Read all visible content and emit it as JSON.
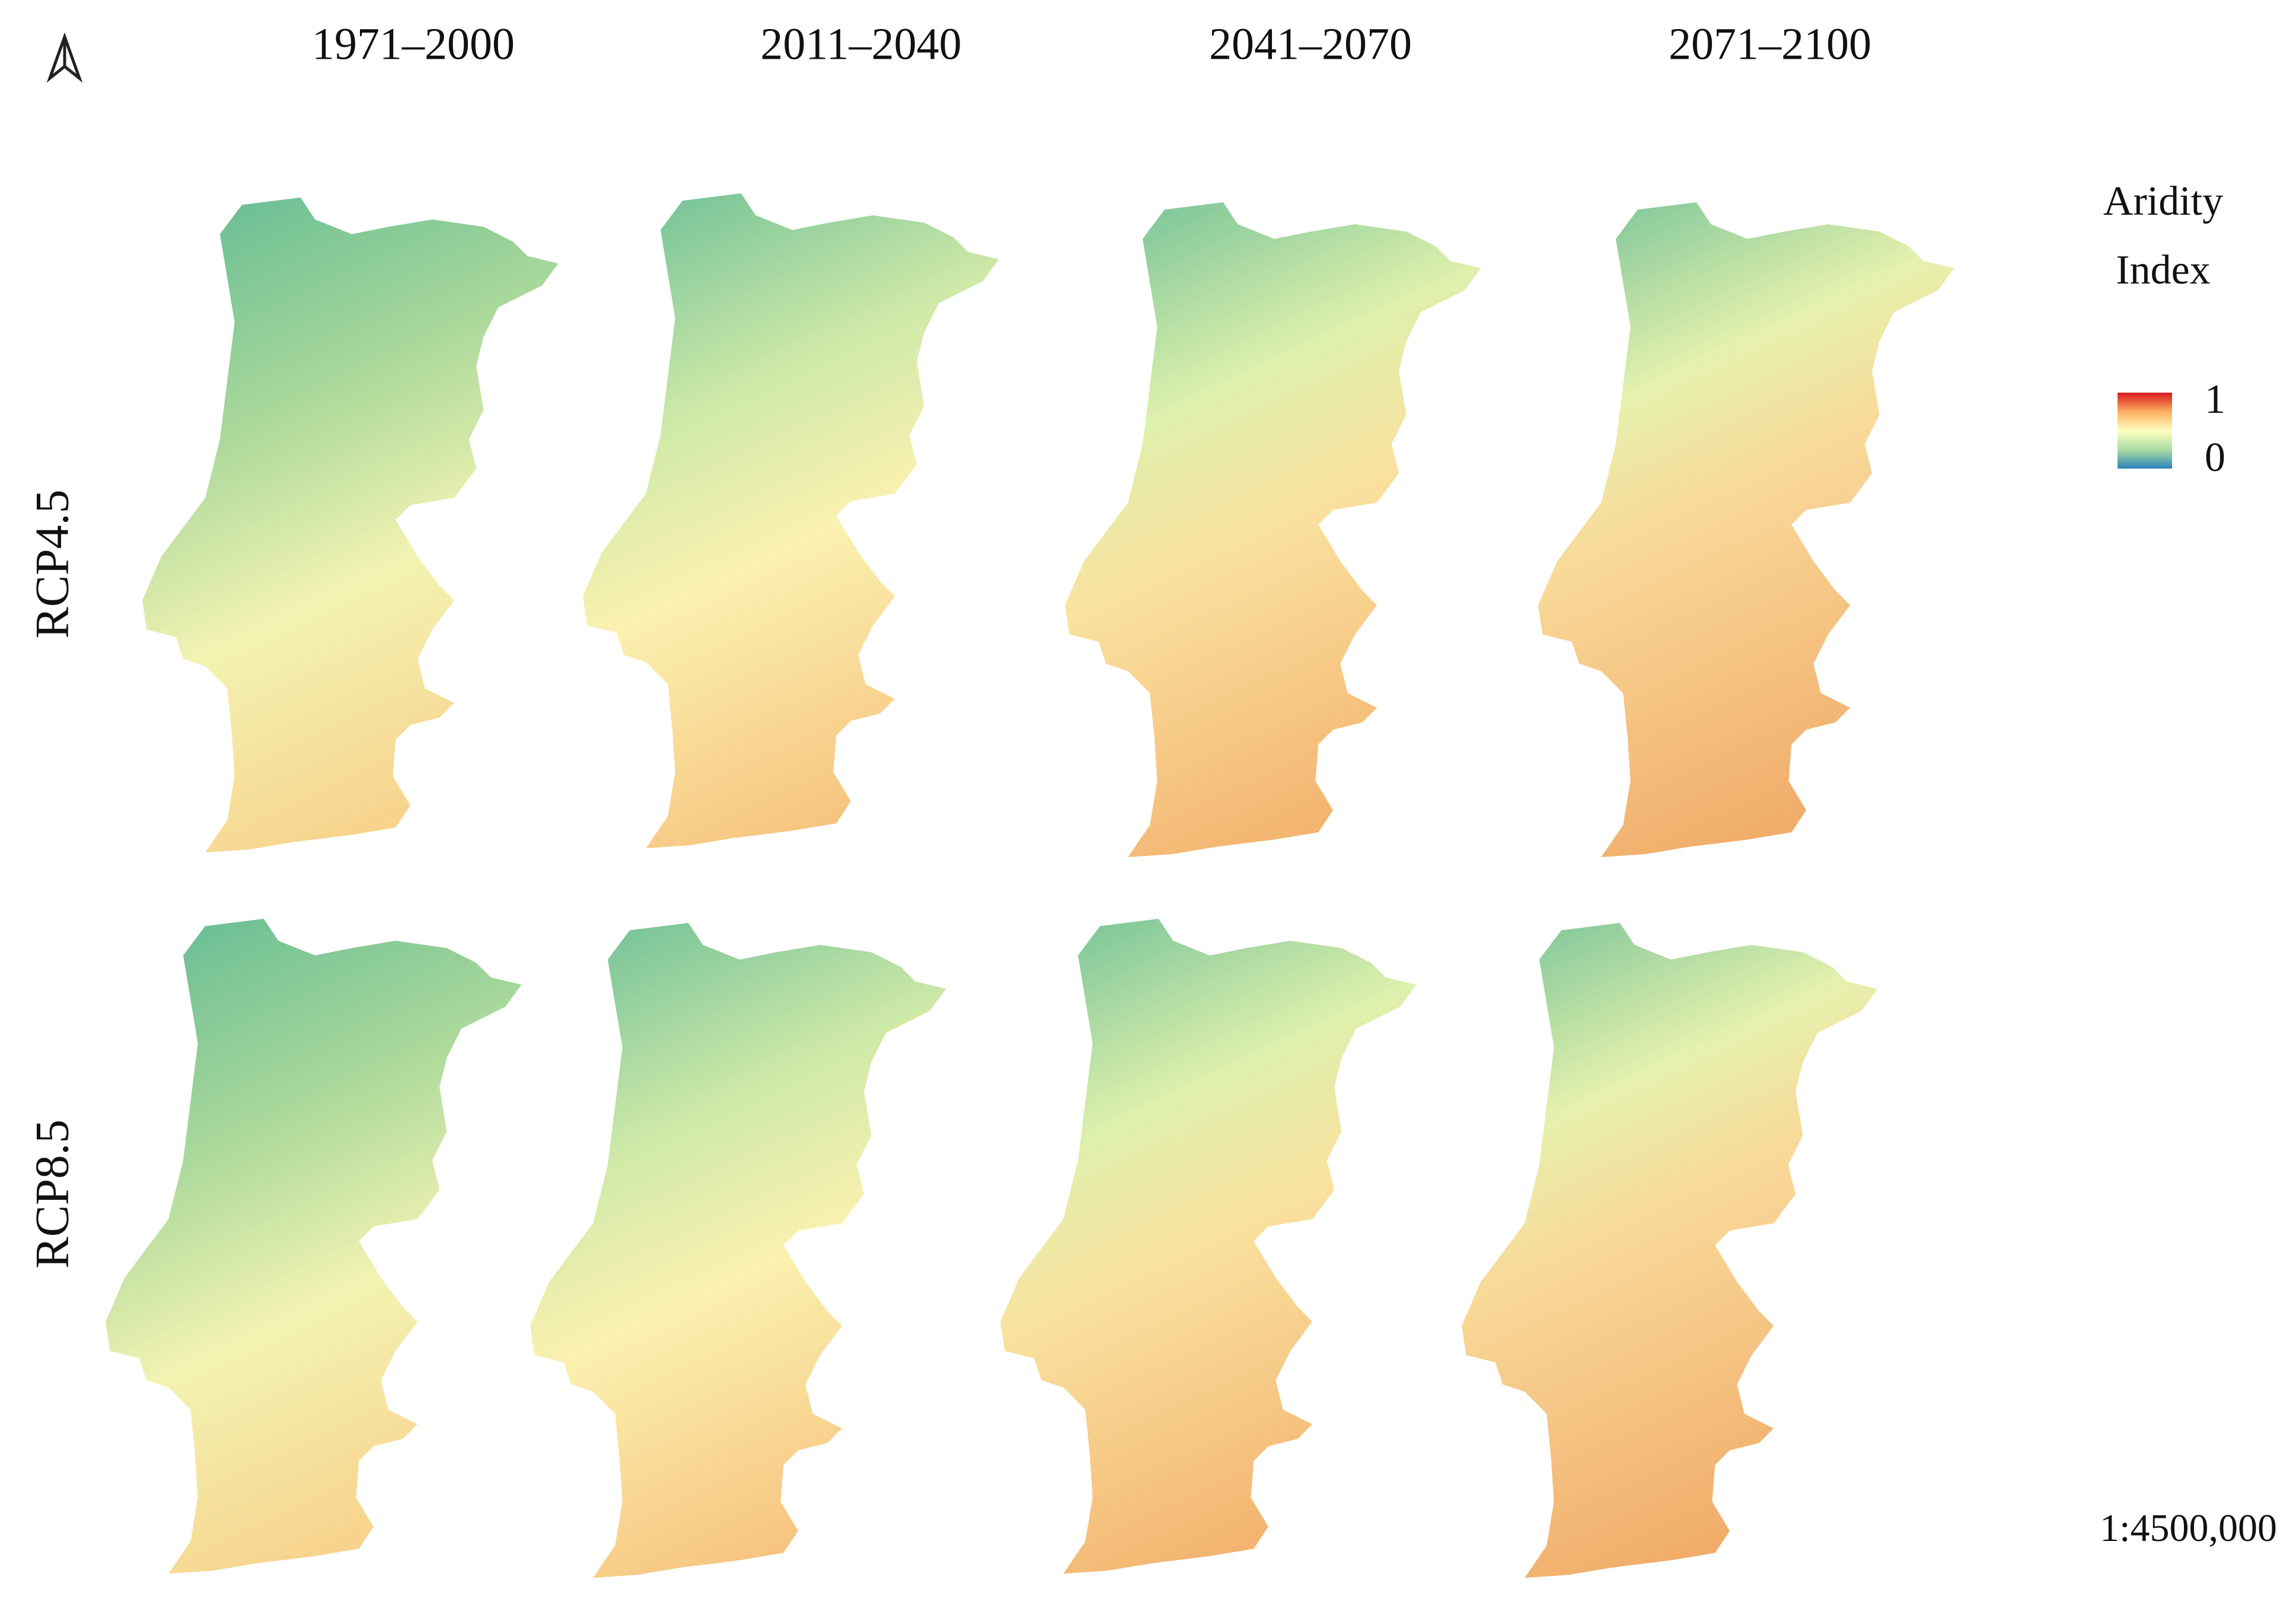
{
  "columns": [
    "1971–2000",
    "2011–2040",
    "2041–2070",
    "2071–2100"
  ],
  "rows": [
    "RCP4.5",
    "RCP8.5"
  ],
  "legend": {
    "title_lines": [
      "Aridity",
      "Index"
    ],
    "max_label": "1",
    "min_label": "0"
  },
  "scale": "1:4500,000"
}
